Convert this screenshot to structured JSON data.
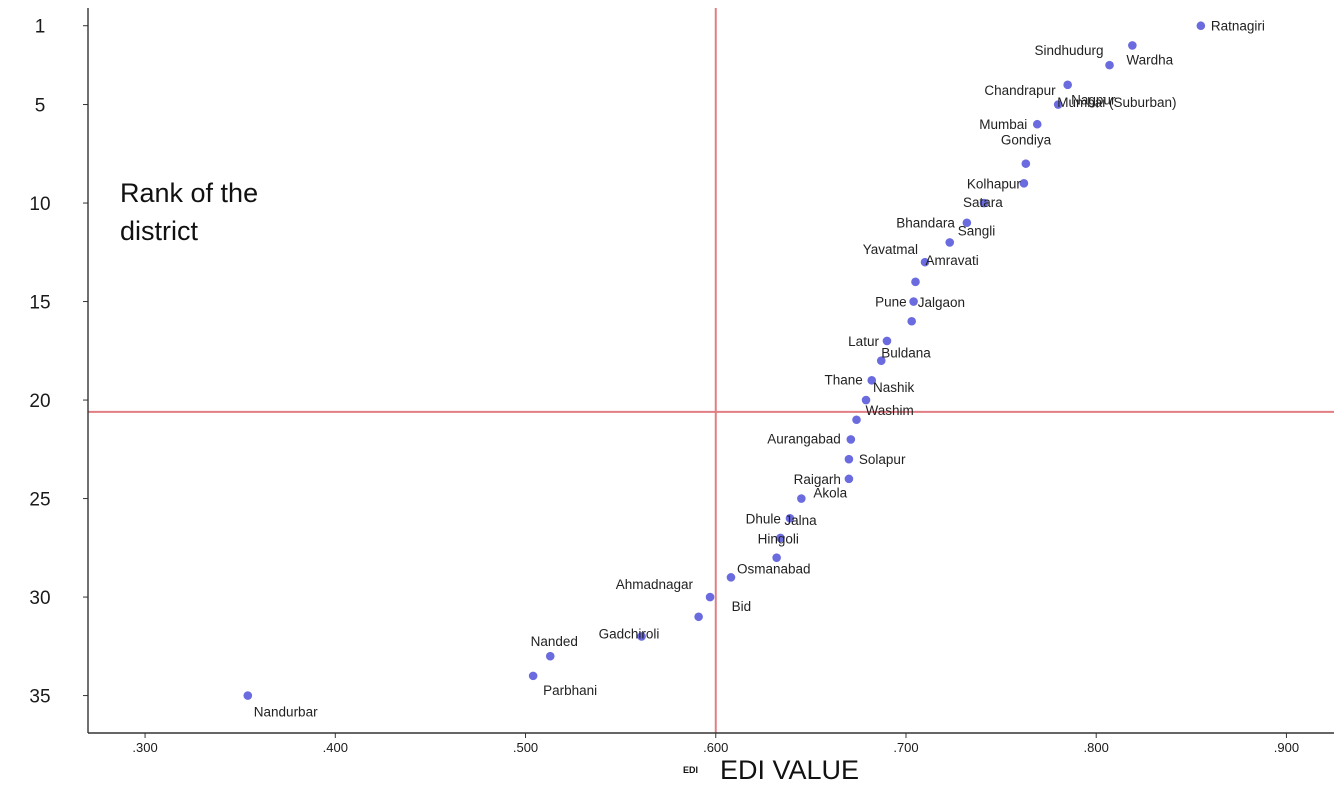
{
  "chart_data": {
    "type": "scatter",
    "xlabel": "EDI VALUE",
    "xlabel_small": "EDI",
    "ylabel": "Rank of the district",
    "xlim": [
      0.27,
      0.925
    ],
    "ylim": [
      36.9,
      0.1
    ],
    "x_ticks": [
      ".300",
      ".400",
      ".500",
      ".600",
      ".700",
      ".800",
      ".900"
    ],
    "y_ticks": [
      "1",
      "5",
      "10",
      "15",
      "20",
      "25",
      "30",
      "35"
    ],
    "reference_lines": {
      "x": 0.6,
      "y": 20.6
    },
    "colors": {
      "point": "#6b6be0",
      "refline": "#e07e84",
      "axis": "#333333"
    },
    "points": [
      {
        "name": "Ratnagiri",
        "x": 0.855,
        "y": 1
      },
      {
        "name": "Sindhudurg",
        "x": 0.807,
        "y": 3
      },
      {
        "name": "Wardha",
        "x": 0.819,
        "y": 2
      },
      {
        "name": "Chandrapur",
        "x": 0.785,
        "y": 4
      },
      {
        "name": "Nagpur",
        "x": 0.78,
        "y": 5
      },
      {
        "name": "Mumbai",
        "x": 0.769,
        "y": 6
      },
      {
        "name": "Mumbai (Suburban)",
        "x": 0.763,
        "y": 8
      },
      {
        "name": "Kolhapur",
        "x": 0.762,
        "y": 9
      },
      {
        "name": "Gondiya",
        "x": 0.741,
        "y": 10
      },
      {
        "name": "Bhandara",
        "x": 0.732,
        "y": 11
      },
      {
        "name": "Satara",
        "x": 0.723,
        "y": 12
      },
      {
        "name": "Yavatmal",
        "x": 0.71,
        "y": 13
      },
      {
        "name": "Sangli",
        "x": 0.705,
        "y": 14
      },
      {
        "name": "Pune",
        "x": 0.704,
        "y": 15
      },
      {
        "name": "Amravati",
        "x": 0.703,
        "y": 16
      },
      {
        "name": "Latur",
        "x": 0.69,
        "y": 17
      },
      {
        "name": "Jalgaon",
        "x": 0.687,
        "y": 18
      },
      {
        "name": "Buldana",
        "x": 0.682,
        "y": 19
      },
      {
        "name": "Thane",
        "x": 0.679,
        "y": 20
      },
      {
        "name": "Nashik",
        "x": 0.674,
        "y": 21
      },
      {
        "name": "Aurangabad",
        "x": 0.671,
        "y": 22
      },
      {
        "name": "Washim",
        "x": 0.67,
        "y": 23
      },
      {
        "name": "Solapur",
        "x": 0.67,
        "y": 24
      },
      {
        "name": "Raigarh",
        "x": 0.645,
        "y": 25
      },
      {
        "name": "Akola",
        "x": 0.639,
        "y": 26
      },
      {
        "name": "Dhule",
        "x": 0.634,
        "y": 27
      },
      {
        "name": "Jalna",
        "x": 0.632,
        "y": 28
      },
      {
        "name": "Hingoli",
        "x": 0.608,
        "y": 29
      },
      {
        "name": "Osmanabad",
        "x": 0.597,
        "y": 30
      },
      {
        "name": "Ahmadnagar",
        "x": 0.591,
        "y": 31
      },
      {
        "name": "Bid",
        "x": 0.56,
        "y": 32
      },
      {
        "name": "Gadchiroli",
        "x": 0.513,
        "y": 33
      },
      {
        "name": "Nanded",
        "x": 0.504,
        "y": 34
      },
      {
        "name": "Parbhani",
        "x": 0.354,
        "y": 35
      },
      {
        "name": "Nandurbar",
        "x": 0.354,
        "y": 35
      }
    ]
  }
}
